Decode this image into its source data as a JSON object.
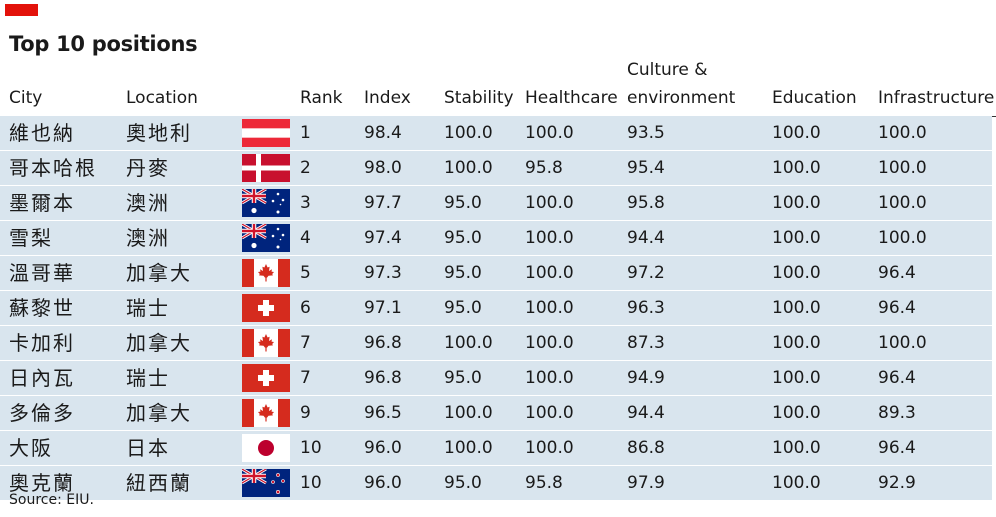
{
  "colors": {
    "accent": "#e3120b",
    "row_bg": "#d9e5ee",
    "text": "#1a1a1a"
  },
  "title": "Top 10 positions",
  "headers": {
    "city": "City",
    "location": "Location",
    "rank": "Rank",
    "index": "Index",
    "stability": "Stability",
    "healthcare": "Healthcare",
    "culture_line1": "Culture &",
    "culture_line2": "environment",
    "education": "Education",
    "infrastructure": "Infrastructure"
  },
  "chart_data": {
    "type": "table",
    "title": "Top 10 positions",
    "columns": [
      "City",
      "Location",
      "Rank",
      "Index",
      "Stability",
      "Healthcare",
      "Culture & environment",
      "Education",
      "Infrastructure"
    ],
    "rows": [
      {
        "city": "維也納",
        "location": "奧地利",
        "flag": "austria-flag-icon",
        "rank": "1",
        "index": "98.4",
        "stability": "100.0",
        "healthcare": "100.0",
        "culture": "93.5",
        "education": "100.0",
        "infrastructure": "100.0"
      },
      {
        "city": "哥本哈根",
        "location": "丹麥",
        "flag": "denmark-flag-icon",
        "rank": "2",
        "index": "98.0",
        "stability": "100.0",
        "healthcare": "95.8",
        "culture": "95.4",
        "education": "100.0",
        "infrastructure": "100.0"
      },
      {
        "city": "墨爾本",
        "location": "澳洲",
        "flag": "australia-flag-icon",
        "rank": "3",
        "index": "97.7",
        "stability": "95.0",
        "healthcare": "100.0",
        "culture": "95.8",
        "education": "100.0",
        "infrastructure": "100.0"
      },
      {
        "city": "雪梨",
        "location": "澳洲",
        "flag": "australia-flag-icon",
        "rank": "4",
        "index": "97.4",
        "stability": "95.0",
        "healthcare": "100.0",
        "culture": "94.4",
        "education": "100.0",
        "infrastructure": "100.0"
      },
      {
        "city": "溫哥華",
        "location": "加拿大",
        "flag": "canada-flag-icon",
        "rank": "5",
        "index": "97.3",
        "stability": "95.0",
        "healthcare": "100.0",
        "culture": "97.2",
        "education": "100.0",
        "infrastructure": "96.4"
      },
      {
        "city": "蘇黎世",
        "location": "瑞士",
        "flag": "switzerland-flag-icon",
        "rank": "6",
        "index": "97.1",
        "stability": "95.0",
        "healthcare": "100.0",
        "culture": "96.3",
        "education": "100.0",
        "infrastructure": "96.4"
      },
      {
        "city": "卡加利",
        "location": "加拿大",
        "flag": "canada-flag-icon",
        "rank": "7",
        "index": "96.8",
        "stability": "100.0",
        "healthcare": "100.0",
        "culture": "87.3",
        "education": "100.0",
        "infrastructure": "100.0"
      },
      {
        "city": "日內瓦",
        "location": "瑞士",
        "flag": "switzerland-flag-icon",
        "rank": "7",
        "index": "96.8",
        "stability": "95.0",
        "healthcare": "100.0",
        "culture": "94.9",
        "education": "100.0",
        "infrastructure": "96.4"
      },
      {
        "city": "多倫多",
        "location": "加拿大",
        "flag": "canada-flag-icon",
        "rank": "9",
        "index": "96.5",
        "stability": "100.0",
        "healthcare": "100.0",
        "culture": "94.4",
        "education": "100.0",
        "infrastructure": "89.3"
      },
      {
        "city": "大阪",
        "location": "日本",
        "flag": "japan-flag-icon",
        "rank": "10",
        "index": "96.0",
        "stability": "100.0",
        "healthcare": "100.0",
        "culture": "86.8",
        "education": "100.0",
        "infrastructure": "96.4"
      },
      {
        "city": "奧克蘭",
        "location": "紐西蘭",
        "flag": "new-zealand-flag-icon",
        "rank": "10",
        "index": "96.0",
        "stability": "95.0",
        "healthcare": "95.8",
        "culture": "97.9",
        "education": "100.0",
        "infrastructure": "92.9"
      }
    ]
  },
  "source": "Source: EIU."
}
